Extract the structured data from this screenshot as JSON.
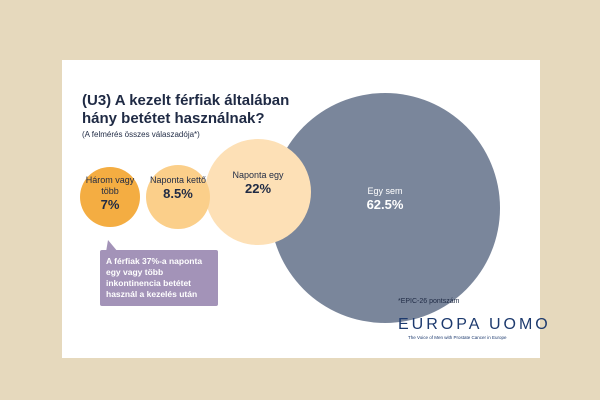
{
  "chart_data": {
    "type": "bubble",
    "title": "(U3) A kezelt férfiak általában hány betétet használnak?",
    "subtitle": "(A felmérés összes válaszadója*)",
    "categories": [
      "Három vagy több",
      "Naponta kettő",
      "Naponta egy",
      "Egy sem"
    ],
    "values": [
      7,
      8.5,
      22,
      62.5
    ],
    "value_labels": [
      "7%",
      "8.5%",
      "22%",
      "62.5%"
    ],
    "colors": [
      "#f4ad42",
      "#fbcf8a",
      "#fde0b6",
      "#7a869b"
    ],
    "annotation": "A férfiak 37%-a naponta egy vagy több inkontinencia betétet használ a kezelés után",
    "footnote": "*EPIC-26 pontszám",
    "logo": "EUROPA UOMO",
    "tagline": "The Voice of Men with Prostate Cancer in Europe"
  }
}
